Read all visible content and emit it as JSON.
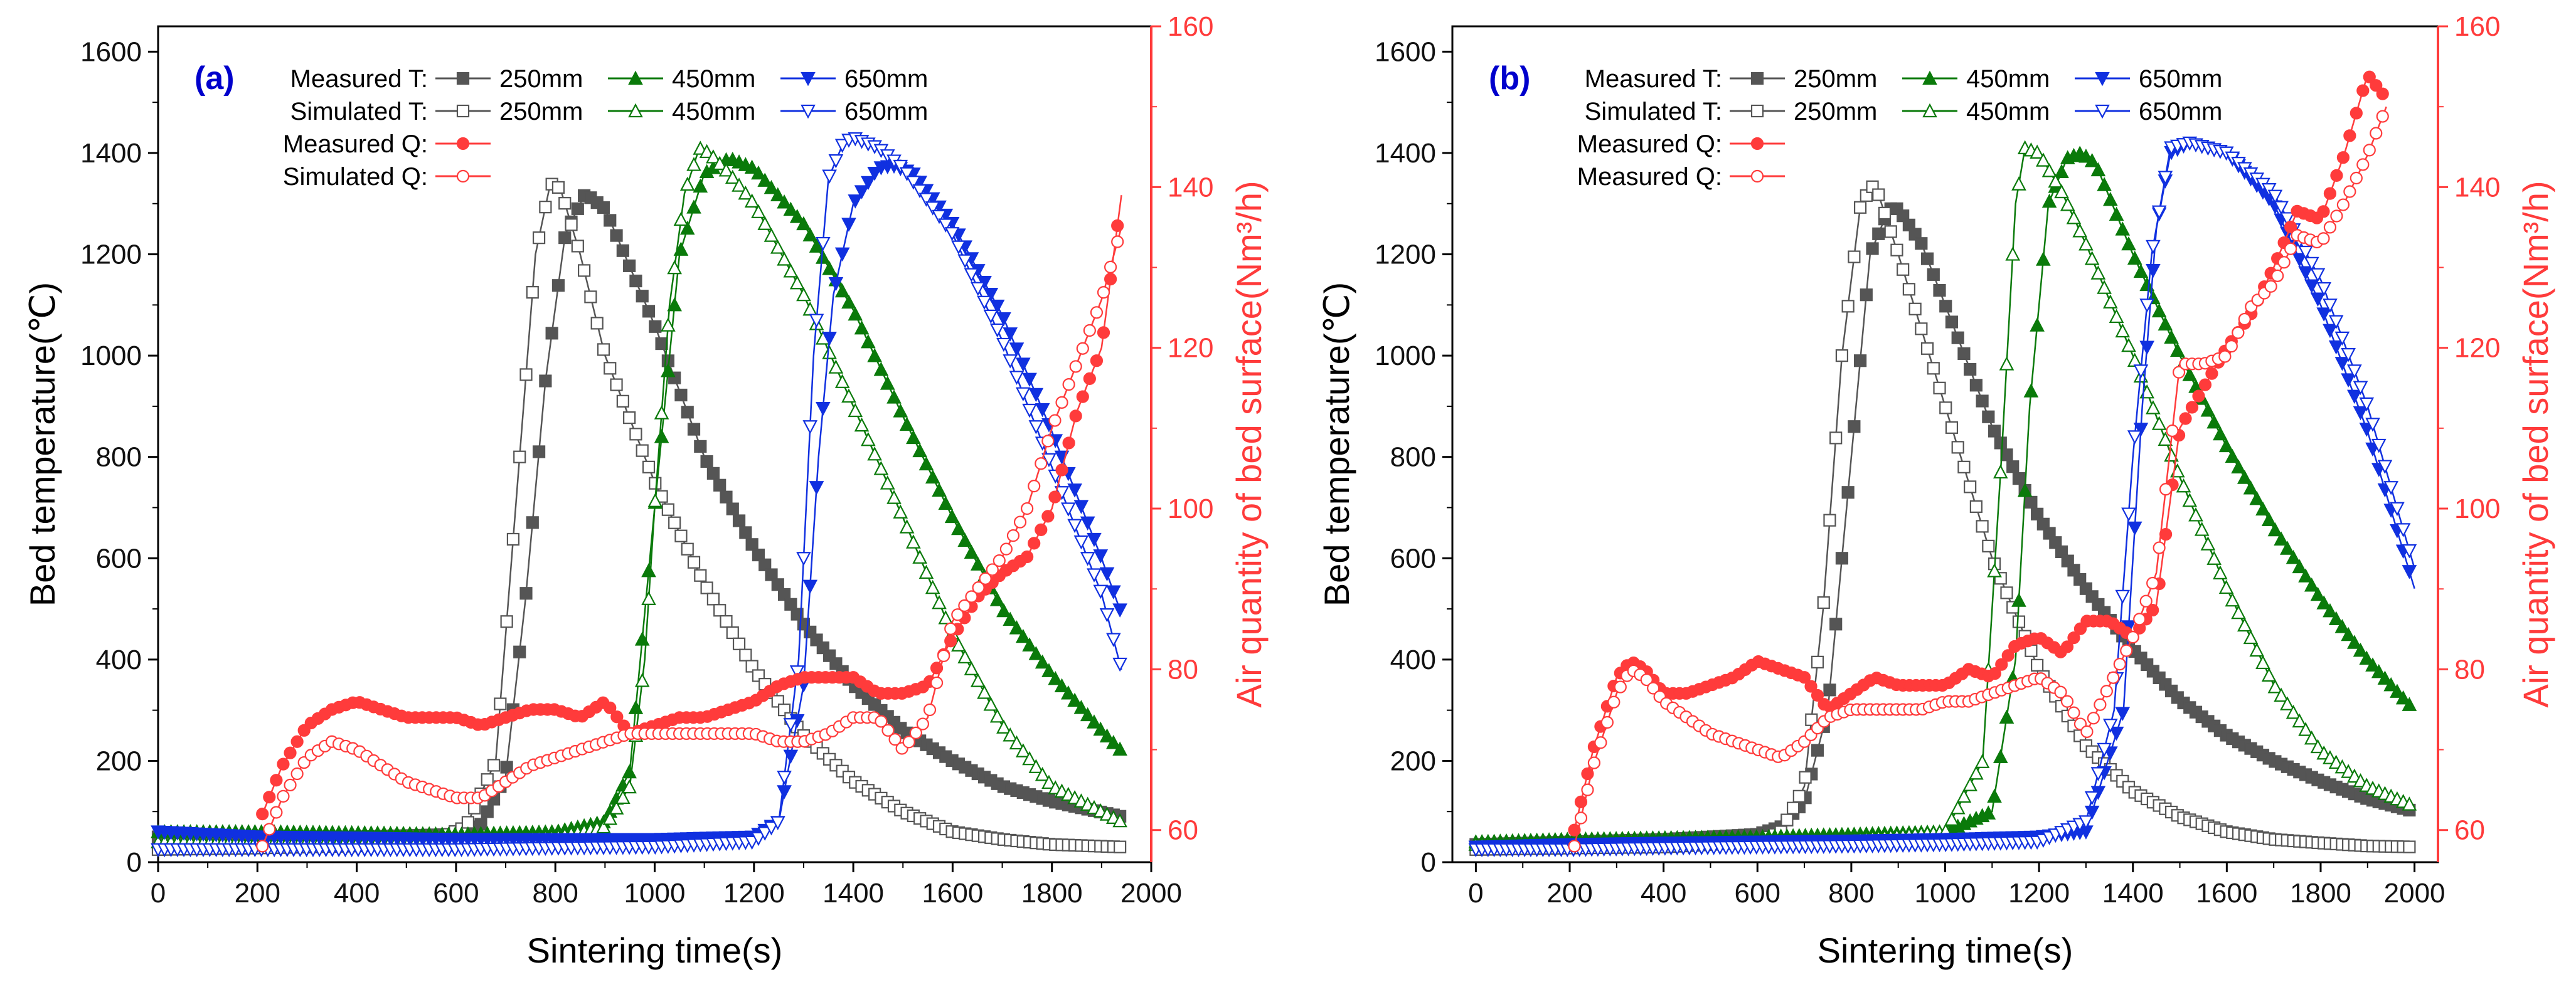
{
  "colors": {
    "c250": "#555555",
    "c450": "#0a7a0a",
    "c650": "#1030e0",
    "cQ": "#ff3b3b",
    "axis": "#000000",
    "panel_label": "#0000cc"
  },
  "chart_data": [
    {
      "type": "line",
      "panel_label": "(a)",
      "xlabel": "Sintering time(s)",
      "ylabel": "Bed temperature(℃)",
      "y2label": "Air quantity of bed surface(Nm³/h)",
      "xlim": [
        0,
        2000
      ],
      "ylim": [
        0,
        1650
      ],
      "y2lim": [
        56,
        160
      ],
      "xticks": [
        "0",
        "200",
        "400",
        "600",
        "800",
        "1000",
        "1200",
        "1400",
        "1600",
        "1800",
        "2000"
      ],
      "yticks": [
        "0",
        "200",
        "400",
        "600",
        "800",
        "1000",
        "1200",
        "1400",
        "1600"
      ],
      "y2ticks": [
        "60",
        "80",
        "100",
        "120",
        "140",
        "160"
      ],
      "legend": {
        "rows": [
          {
            "label": "Measured T:",
            "entries": [
              "250mm",
              "450mm",
              "650mm"
            ]
          },
          {
            "label": "Simulated T:",
            "entries": [
              "250mm",
              "450mm",
              "650mm"
            ]
          },
          {
            "label": "Measured Q:",
            "entries": []
          },
          {
            "label": "Simulated Q:",
            "entries": []
          }
        ]
      },
      "series": [
        {
          "name": "Measured T: 250mm",
          "axis": "left",
          "marker": "square-filled",
          "color": "#555555",
          "x": [
            0,
            200,
            400,
            600,
            650,
            700,
            740,
            780,
            820,
            860,
            900,
            1000,
            1100,
            1200,
            1300,
            1400,
            1500,
            1600,
            1700,
            1800,
            1940
          ],
          "y": [
            50,
            50,
            50,
            55,
            75,
            170,
            520,
            950,
            1240,
            1320,
            1290,
            1060,
            800,
            620,
            470,
            350,
            260,
            200,
            150,
            120,
            90
          ]
        },
        {
          "name": "Simulated T: 250mm",
          "axis": "left",
          "marker": "square-open",
          "color": "#555555",
          "x": [
            0,
            200,
            400,
            550,
            620,
            680,
            720,
            760,
            790,
            810,
            850,
            900,
            1000,
            1100,
            1200,
            1300,
            1400,
            1500,
            1600,
            1700,
            1800,
            1940
          ],
          "y": [
            25,
            28,
            32,
            40,
            70,
            200,
            700,
            1200,
            1340,
            1330,
            1200,
            1000,
            750,
            550,
            380,
            250,
            160,
            100,
            60,
            45,
            35,
            30
          ]
        },
        {
          "name": "Measured T: 450mm",
          "axis": "left",
          "marker": "triangle-up-filled",
          "color": "#0a7a0a",
          "x": [
            0,
            200,
            400,
            600,
            800,
            900,
            950,
            1000,
            1050,
            1100,
            1150,
            1200,
            1300,
            1400,
            1500,
            1600,
            1700,
            1800,
            1900,
            1940
          ],
          "y": [
            60,
            60,
            58,
            55,
            60,
            80,
            180,
            700,
            1200,
            1360,
            1390,
            1370,
            1260,
            1090,
            880,
            680,
            500,
            370,
            260,
            220
          ]
        },
        {
          "name": "Simulated T: 450mm",
          "axis": "left",
          "marker": "triangle-up-open",
          "color": "#0a7a0a",
          "x": [
            0,
            200,
            400,
            600,
            800,
            900,
            950,
            980,
            1000,
            1030,
            1060,
            1090,
            1110,
            1150,
            1200,
            1300,
            1400,
            1500,
            1600,
            1700,
            1800,
            1940
          ],
          "y": [
            40,
            40,
            42,
            45,
            50,
            70,
            150,
            400,
            700,
            1100,
            1320,
            1410,
            1400,
            1360,
            1300,
            1120,
            900,
            680,
            450,
            270,
            150,
            80
          ]
        },
        {
          "name": "Measured T: 650mm",
          "axis": "left",
          "marker": "triangle-down-filled",
          "color": "#1030e0",
          "x": [
            0,
            200,
            400,
            600,
            800,
            1000,
            1200,
            1250,
            1300,
            1330,
            1360,
            1400,
            1450,
            1480,
            1520,
            1600,
            1700,
            1800,
            1900,
            1940
          ],
          "y": [
            60,
            50,
            48,
            45,
            45,
            45,
            50,
            80,
            350,
            800,
            1120,
            1300,
            1370,
            1375,
            1360,
            1260,
            1080,
            850,
            600,
            490
          ]
        },
        {
          "name": "Simulated T: 650mm",
          "axis": "left",
          "marker": "triangle-down-open",
          "color": "#1030e0",
          "x": [
            0,
            200,
            400,
            600,
            800,
            1000,
            1200,
            1250,
            1290,
            1320,
            1350,
            1380,
            1400,
            1450,
            1500,
            1600,
            1700,
            1800,
            1900,
            1940
          ],
          "y": [
            25,
            25,
            25,
            25,
            28,
            30,
            40,
            80,
            400,
            1000,
            1350,
            1420,
            1430,
            1410,
            1370,
            1240,
            1030,
            780,
            530,
            380
          ]
        },
        {
          "name": "Measured Q:",
          "axis": "right",
          "marker": "circle-filled",
          "color": "#ff3b3b",
          "x": [
            210,
            250,
            300,
            350,
            400,
            450,
            500,
            550,
            600,
            650,
            700,
            750,
            800,
            850,
            900,
            950,
            1000,
            1050,
            1100,
            1150,
            1200,
            1250,
            1300,
            1350,
            1400,
            1450,
            1500,
            1550,
            1600,
            1650,
            1700,
            1750,
            1800,
            1850,
            1900,
            1940
          ],
          "y": [
            62,
            68,
            73,
            75,
            76,
            75,
            74,
            74,
            74,
            73,
            74,
            75,
            75,
            74,
            76,
            72,
            73,
            74,
            74,
            75,
            76,
            78,
            79,
            79,
            79,
            77,
            77,
            78,
            84,
            89,
            92,
            94,
            100,
            112,
            120,
            139
          ]
        },
        {
          "name": "Simulated Q:",
          "axis": "right",
          "marker": "circle-open",
          "color": "#ff3b3b",
          "x": [
            210,
            250,
            300,
            350,
            400,
            450,
            500,
            550,
            600,
            650,
            700,
            750,
            800,
            850,
            900,
            950,
            1000,
            1050,
            1100,
            1150,
            1200,
            1250,
            1300,
            1350,
            1400,
            1450,
            1500,
            1550,
            1600,
            1650,
            1700,
            1750,
            1800,
            1850,
            1900,
            1940
          ],
          "y": [
            58,
            64,
            69,
            71,
            70,
            68,
            66,
            65,
            64,
            64,
            66,
            68,
            69,
            70,
            71,
            72,
            72,
            72,
            72,
            72,
            72,
            71,
            71,
            72,
            74,
            74,
            70,
            74,
            86,
            90,
            94,
            100,
            110,
            118,
            126,
            135
          ]
        }
      ]
    },
    {
      "type": "line",
      "panel_label": "(b)",
      "xlabel": "Sintering time(s)",
      "ylabel": "Bed temperature(℃)",
      "y2label": "Air quantity of bed surface(Nm³/h)",
      "xlim": [
        -50,
        2050
      ],
      "ylim": [
        0,
        1650
      ],
      "y2lim": [
        56,
        160
      ],
      "xticks": [
        "0",
        "200",
        "400",
        "600",
        "800",
        "1000",
        "1200",
        "1400",
        "1600",
        "1800",
        "2000"
      ],
      "yticks": [
        "0",
        "200",
        "400",
        "600",
        "800",
        "1000",
        "1200",
        "1400",
        "1600"
      ],
      "y2ticks": [
        "60",
        "80",
        "100",
        "120",
        "140",
        "160"
      ],
      "legend": {
        "rows": [
          {
            "label": "Measured T:",
            "entries": [
              "250mm",
              "450mm",
              "650mm"
            ]
          },
          {
            "label": "Simulated T:",
            "entries": [
              "250mm",
              "450mm",
              "650mm"
            ]
          },
          {
            "label": "Measured Q:",
            "entries": []
          },
          {
            "label": "Measured Q:",
            "entries": []
          }
        ]
      },
      "series": [
        {
          "name": "Measured T: 250mm",
          "axis": "left",
          "marker": "square-filled",
          "color": "#555555",
          "x": [
            0,
            200,
            400,
            600,
            650,
            700,
            750,
            800,
            840,
            880,
            900,
            950,
            1000,
            1100,
            1200,
            1300,
            1400,
            1500,
            1600,
            1700,
            1800,
            1900,
            2000
          ],
          "y": [
            35,
            40,
            45,
            55,
            70,
            120,
            300,
            800,
            1200,
            1290,
            1290,
            1220,
            1100,
            860,
            680,
            540,
            420,
            320,
            250,
            200,
            160,
            125,
            100
          ]
        },
        {
          "name": "Simulated T: 250mm",
          "axis": "left",
          "marker": "square-open",
          "color": "#555555",
          "x": [
            0,
            200,
            400,
            600,
            650,
            700,
            740,
            780,
            820,
            850,
            900,
            1000,
            1100,
            1200,
            1300,
            1400,
            1500,
            1600,
            1700,
            1800,
            1900,
            2000
          ],
          "y": [
            25,
            28,
            30,
            40,
            60,
            150,
            500,
            1000,
            1300,
            1340,
            1200,
            900,
            600,
            380,
            230,
            140,
            90,
            60,
            45,
            38,
            32,
            30
          ]
        },
        {
          "name": "Measured T: 450mm",
          "axis": "left",
          "marker": "triangle-up-filled",
          "color": "#0a7a0a",
          "x": [
            0,
            200,
            400,
            600,
            800,
            1000,
            1100,
            1150,
            1180,
            1220,
            1260,
            1290,
            1320,
            1400,
            1500,
            1600,
            1700,
            1800,
            1900,
            2000
          ],
          "y": [
            40,
            45,
            48,
            50,
            55,
            60,
            100,
            400,
            900,
            1300,
            1390,
            1400,
            1380,
            1200,
            1000,
            820,
            660,
            520,
            400,
            300
          ]
        },
        {
          "name": "Simulated T: 450mm",
          "axis": "left",
          "marker": "triangle-up-open",
          "color": "#0a7a0a",
          "x": [
            0,
            200,
            400,
            600,
            800,
            1000,
            1080,
            1120,
            1150,
            1170,
            1200,
            1250,
            1300,
            1400,
            1500,
            1600,
            1700,
            1800,
            1900,
            2000
          ],
          "y": [
            35,
            35,
            38,
            40,
            45,
            60,
            200,
            800,
            1300,
            1410,
            1400,
            1320,
            1220,
            1000,
            760,
            540,
            350,
            220,
            150,
            110
          ]
        },
        {
          "name": "Measured T: 650mm",
          "axis": "left",
          "marker": "triangle-down-filled",
          "color": "#1030e0",
          "x": [
            0,
            200,
            400,
            600,
            800,
            1000,
            1200,
            1300,
            1380,
            1420,
            1450,
            1480,
            1520,
            1600,
            1700,
            1800,
            1900,
            2000
          ],
          "y": [
            30,
            35,
            38,
            40,
            42,
            45,
            50,
            60,
            300,
            900,
            1250,
            1400,
            1420,
            1400,
            1300,
            1100,
            850,
            540
          ]
        },
        {
          "name": "Simulated T: 650mm",
          "axis": "left",
          "marker": "triangle-down-open",
          "color": "#1030e0",
          "x": [
            0,
            200,
            400,
            600,
            800,
            1000,
            1200,
            1300,
            1360,
            1400,
            1440,
            1480,
            1520,
            1600,
            1700,
            1800,
            1900,
            2000
          ],
          "y": [
            25,
            25,
            28,
            30,
            32,
            35,
            40,
            80,
            300,
            800,
            1200,
            1410,
            1420,
            1400,
            1320,
            1150,
            900,
            580
          ]
        },
        {
          "name": "Measured Q:",
          "axis": "right",
          "marker": "circle-filled",
          "color": "#ff3b3b",
          "x": [
            210,
            250,
            300,
            330,
            360,
            400,
            450,
            500,
            550,
            600,
            650,
            700,
            750,
            800,
            850,
            900,
            950,
            1000,
            1050,
            1100,
            1150,
            1200,
            1250,
            1300,
            1350,
            1400,
            1450,
            1500,
            1550,
            1600,
            1650,
            1700,
            1750,
            1800,
            1850,
            1900,
            1940
          ],
          "y": [
            60,
            70,
            79,
            81,
            80,
            77,
            77,
            78,
            79,
            81,
            80,
            79,
            75,
            77,
            79,
            78,
            78,
            78,
            80,
            79,
            83,
            84,
            82,
            86,
            86,
            84,
            88,
            110,
            115,
            120,
            124,
            130,
            137,
            136,
            144,
            154,
            151
          ]
        },
        {
          "name": "Measured Q:",
          "axis": "right",
          "marker": "circle-open",
          "color": "#ff3b3b",
          "x": [
            210,
            250,
            300,
            330,
            360,
            400,
            450,
            500,
            550,
            600,
            650,
            700,
            750,
            800,
            850,
            900,
            950,
            1000,
            1050,
            1100,
            1150,
            1200,
            1250,
            1300,
            1350,
            1400,
            1450,
            1500,
            1550,
            1600,
            1650,
            1700,
            1750,
            1800,
            1850,
            1900,
            1940
          ],
          "y": [
            58,
            68,
            77,
            80,
            79,
            76,
            74,
            72,
            71,
            70,
            69,
            71,
            74,
            75,
            75,
            75,
            75,
            76,
            76,
            77,
            78,
            79,
            77,
            72,
            78,
            84,
            92,
            118,
            118,
            119,
            125,
            128,
            134,
            133,
            138,
            144,
            150
          ]
        }
      ]
    }
  ]
}
